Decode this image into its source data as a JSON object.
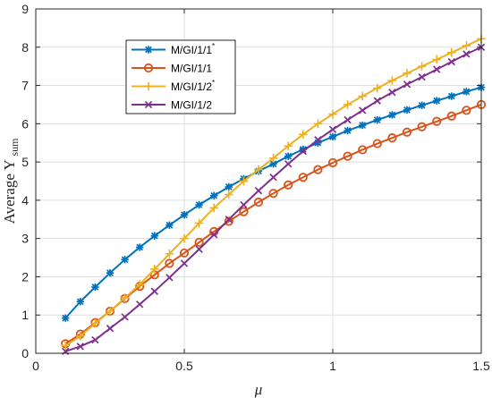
{
  "chart_data": {
    "type": "line",
    "xlabel": "μ",
    "ylabel": {
      "main": "Average Y",
      "sub": "sum"
    },
    "xlim": [
      0,
      1.5
    ],
    "ylim": [
      0,
      9
    ],
    "xticks": [
      0,
      0.5,
      1,
      1.5
    ],
    "xtick_labels": [
      "0",
      "0.5",
      "1",
      "1.5"
    ],
    "yticks": [
      0,
      1,
      2,
      3,
      4,
      5,
      6,
      7,
      8,
      9
    ],
    "ytick_labels": [
      "0",
      "1",
      "2",
      "3",
      "4",
      "5",
      "6",
      "7",
      "8",
      "9"
    ],
    "grid": true,
    "legend_position": "top-left",
    "x": [
      0.1,
      0.15,
      0.2,
      0.25,
      0.3,
      0.35,
      0.4,
      0.45,
      0.5,
      0.55,
      0.6,
      0.65,
      0.7,
      0.75,
      0.8,
      0.85,
      0.9,
      0.95,
      1.0,
      1.05,
      1.1,
      1.15,
      1.2,
      1.25,
      1.3,
      1.35,
      1.4,
      1.45,
      1.5
    ],
    "series": [
      {
        "name": "M/GI/1/1",
        "superscript": "*",
        "color": "#0072BD",
        "marker": "asterisk",
        "values": [
          0.92,
          1.35,
          1.73,
          2.1,
          2.45,
          2.77,
          3.07,
          3.35,
          3.62,
          3.88,
          4.12,
          4.35,
          4.56,
          4.76,
          4.95,
          5.15,
          5.33,
          5.5,
          5.66,
          5.82,
          5.96,
          6.1,
          6.23,
          6.36,
          6.48,
          6.6,
          6.72,
          6.84,
          6.95
        ]
      },
      {
        "name": "M/GI/1/1",
        "superscript": "",
        "color": "#D95319",
        "marker": "circle",
        "values": [
          0.25,
          0.5,
          0.8,
          1.1,
          1.43,
          1.75,
          2.05,
          2.35,
          2.62,
          2.9,
          3.18,
          3.45,
          3.7,
          3.95,
          4.18,
          4.4,
          4.6,
          4.8,
          4.98,
          5.15,
          5.32,
          5.48,
          5.63,
          5.78,
          5.92,
          6.06,
          6.2,
          6.35,
          6.5
        ]
      },
      {
        "name": "M/GI/1/2",
        "superscript": "*",
        "color": "#EDB120",
        "marker": "plus",
        "values": [
          0.2,
          0.45,
          0.78,
          1.1,
          1.45,
          1.8,
          2.2,
          2.6,
          3.0,
          3.4,
          3.8,
          4.15,
          4.5,
          4.8,
          5.1,
          5.42,
          5.72,
          6.0,
          6.25,
          6.5,
          6.72,
          6.93,
          7.13,
          7.32,
          7.5,
          7.68,
          7.86,
          8.04,
          8.22
        ]
      },
      {
        "name": "M/GI/1/2",
        "superscript": "",
        "color": "#7E2F8E",
        "marker": "x",
        "values": [
          0.05,
          0.18,
          0.35,
          0.65,
          0.95,
          1.28,
          1.62,
          1.98,
          2.35,
          2.72,
          3.1,
          3.5,
          3.88,
          4.25,
          4.6,
          4.95,
          5.28,
          5.58,
          5.85,
          6.1,
          6.35,
          6.6,
          6.82,
          7.03,
          7.22,
          7.42,
          7.62,
          7.82,
          8.0
        ]
      }
    ]
  }
}
